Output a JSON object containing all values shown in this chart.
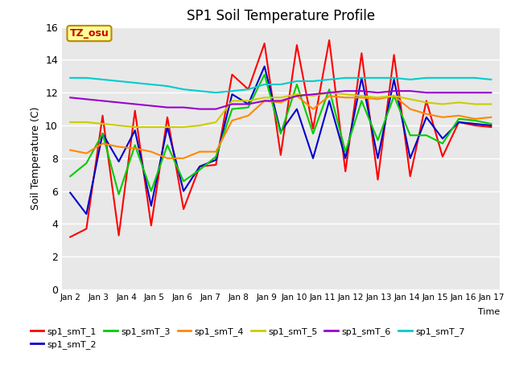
{
  "title": "SP1 Soil Temperature Profile",
  "xlabel": "Time",
  "ylabel": "Soil Temperature (C)",
  "ylim": [
    0,
    16
  ],
  "yticks": [
    0,
    2,
    4,
    6,
    8,
    10,
    12,
    14,
    16
  ],
  "annotation_text": "TZ_osu",
  "annotation_color": "#cc0000",
  "annotation_bg": "#ffff99",
  "annotation_border": "#bb8800",
  "bg_color": "#e8e8e8",
  "grid_color": "white",
  "series_colors": {
    "sp1_smT_1": "#ff0000",
    "sp1_smT_2": "#0000cc",
    "sp1_smT_3": "#00cc00",
    "sp1_smT_4": "#ff8800",
    "sp1_smT_5": "#cccc00",
    "sp1_smT_6": "#9900cc",
    "sp1_smT_7": "#00cccc"
  },
  "x_labels": [
    "Jan 2",
    "Jan 3",
    "Jan 4",
    "Jan 5",
    "Jan 6",
    "Jan 7",
    "Jan 8",
    "Jan 9",
    "Jan 10",
    "Jan 11",
    "Jan 12",
    "Jan 13",
    "Jan 14",
    "Jan 15",
    "Jan 16",
    "Jan 17"
  ],
  "sp1_smT_1": [
    3.2,
    3.7,
    10.6,
    3.3,
    10.9,
    3.9,
    10.5,
    4.9,
    7.5,
    7.6,
    13.1,
    12.2,
    15.0,
    8.2,
    14.9,
    9.8,
    15.2,
    7.2,
    14.4,
    6.7,
    14.3,
    6.9,
    11.5,
    8.1,
    10.2,
    10.0,
    9.9
  ],
  "sp1_smT_2": [
    5.9,
    4.6,
    9.5,
    7.8,
    9.7,
    5.1,
    9.9,
    6.0,
    7.5,
    7.9,
    11.9,
    11.3,
    13.6,
    9.6,
    11.0,
    8.0,
    11.5,
    8.0,
    12.9,
    8.0,
    12.8,
    8.0,
    10.5,
    9.2,
    10.2,
    10.1,
    10.0
  ],
  "sp1_smT_3": [
    6.9,
    7.7,
    9.5,
    5.8,
    8.8,
    6.0,
    8.8,
    6.6,
    7.3,
    8.1,
    11.0,
    11.1,
    13.1,
    9.5,
    12.5,
    9.5,
    12.2,
    8.4,
    11.5,
    9.1,
    11.8,
    9.4,
    9.4,
    8.9,
    10.4,
    10.3,
    10.1
  ],
  "sp1_smT_4": [
    8.5,
    8.3,
    8.9,
    8.7,
    8.6,
    8.4,
    8.0,
    8.0,
    8.4,
    8.4,
    10.3,
    10.6,
    11.5,
    11.4,
    11.8,
    11.0,
    11.8,
    11.7,
    11.7,
    11.6,
    11.8,
    11.0,
    10.7,
    10.5,
    10.6,
    10.4,
    10.5
  ],
  "sp1_smT_5": [
    10.2,
    10.2,
    10.1,
    10.0,
    9.9,
    9.9,
    9.9,
    9.9,
    10.0,
    10.2,
    11.5,
    11.5,
    11.7,
    11.7,
    11.9,
    11.8,
    12.0,
    11.9,
    11.8,
    11.7,
    11.8,
    11.6,
    11.4,
    11.3,
    11.4,
    11.3,
    11.3
  ],
  "sp1_smT_6": [
    11.7,
    11.6,
    11.5,
    11.4,
    11.3,
    11.2,
    11.1,
    11.1,
    11.0,
    11.0,
    11.3,
    11.3,
    11.5,
    11.5,
    11.8,
    11.9,
    12.0,
    12.1,
    12.1,
    12.0,
    12.1,
    12.1,
    12.0,
    12.0,
    12.0,
    12.0,
    12.0
  ],
  "sp1_smT_7": [
    12.9,
    12.9,
    12.8,
    12.7,
    12.6,
    12.5,
    12.4,
    12.2,
    12.1,
    12.0,
    12.1,
    12.2,
    12.5,
    12.5,
    12.7,
    12.7,
    12.8,
    12.9,
    12.9,
    12.9,
    12.9,
    12.8,
    12.9,
    12.9,
    12.9,
    12.9,
    12.8
  ]
}
